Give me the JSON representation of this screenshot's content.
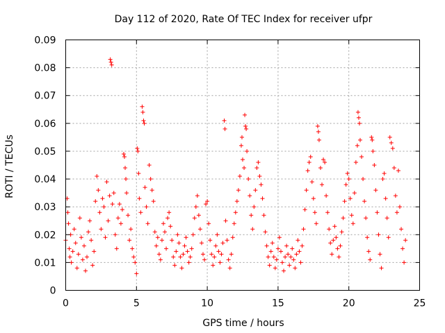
{
  "chart_data": {
    "type": "scatter",
    "title": "Day 112 of 2020, Rate Of TEC Index for receiver ufpr",
    "xlabel": "GPS time / hours",
    "ylabel": "ROTI / TECUs",
    "xlim": [
      0,
      25
    ],
    "ylim": [
      0,
      0.09
    ],
    "x_ticks": [
      "0",
      "5",
      "10",
      "15",
      "20",
      "25"
    ],
    "y_ticks": [
      "0",
      "0.01",
      "0.02",
      "0.03",
      "0.04",
      "0.05",
      "0.06",
      "0.07",
      "0.08",
      "0.09"
    ],
    "grid": true,
    "marker": "+",
    "color": "#ff0000",
    "series": [
      {
        "name": "ROTI",
        "points": [
          [
            0.0,
            0.018
          ],
          [
            0.1,
            0.033
          ],
          [
            0.15,
            0.028
          ],
          [
            0.2,
            0.024
          ],
          [
            0.25,
            0.015
          ],
          [
            0.3,
            0.012
          ],
          [
            0.35,
            0.02
          ],
          [
            0.4,
            0.01
          ],
          [
            0.5,
            0.014
          ],
          [
            0.6,
            0.022
          ],
          [
            0.7,
            0.017
          ],
          [
            0.8,
            0.008
          ],
          [
            0.9,
            0.013
          ],
          [
            1.0,
            0.026
          ],
          [
            1.1,
            0.019
          ],
          [
            1.2,
            0.011
          ],
          [
            1.3,
            0.016
          ],
          [
            1.4,
            0.007
          ],
          [
            1.5,
            0.012
          ],
          [
            1.6,
            0.021
          ],
          [
            1.7,
            0.025
          ],
          [
            1.8,
            0.018
          ],
          [
            1.9,
            0.009
          ],
          [
            2.0,
            0.014
          ],
          [
            2.1,
            0.032
          ],
          [
            2.2,
            0.041
          ],
          [
            2.3,
            0.036
          ],
          [
            2.4,
            0.028
          ],
          [
            2.5,
            0.022
          ],
          [
            2.6,
            0.033
          ],
          [
            2.7,
            0.03
          ],
          [
            2.8,
            0.019
          ],
          [
            2.9,
            0.039
          ],
          [
            3.0,
            0.025
          ],
          [
            3.1,
            0.034
          ],
          [
            3.15,
            0.083
          ],
          [
            3.2,
            0.082
          ],
          [
            3.25,
            0.081
          ],
          [
            3.3,
            0.031
          ],
          [
            3.4,
            0.035
          ],
          [
            3.5,
            0.02
          ],
          [
            3.6,
            0.015
          ],
          [
            3.7,
            0.026
          ],
          [
            3.8,
            0.031
          ],
          [
            3.9,
            0.024
          ],
          [
            4.0,
            0.029
          ],
          [
            4.1,
            0.049
          ],
          [
            4.15,
            0.048
          ],
          [
            4.2,
            0.044
          ],
          [
            4.25,
            0.04
          ],
          [
            4.3,
            0.035
          ],
          [
            4.4,
            0.027
          ],
          [
            4.5,
            0.018
          ],
          [
            4.6,
            0.022
          ],
          [
            4.7,
            0.015
          ],
          [
            4.8,
            0.012
          ],
          [
            4.9,
            0.01
          ],
          [
            5.0,
            0.006
          ],
          [
            5.05,
            0.051
          ],
          [
            5.1,
            0.05
          ],
          [
            5.15,
            0.042
          ],
          [
            5.2,
            0.033
          ],
          [
            5.3,
            0.028
          ],
          [
            5.4,
            0.066
          ],
          [
            5.45,
            0.064
          ],
          [
            5.5,
            0.061
          ],
          [
            5.55,
            0.06
          ],
          [
            5.6,
            0.037
          ],
          [
            5.7,
            0.03
          ],
          [
            5.8,
            0.024
          ],
          [
            5.9,
            0.045
          ],
          [
            6.0,
            0.04
          ],
          [
            6.1,
            0.036
          ],
          [
            6.2,
            0.032
          ],
          [
            6.3,
            0.021
          ],
          [
            6.4,
            0.016
          ],
          [
            6.5,
            0.019
          ],
          [
            6.6,
            0.013
          ],
          [
            6.7,
            0.011
          ],
          [
            6.8,
            0.018
          ],
          [
            6.9,
            0.024
          ],
          [
            7.0,
            0.021
          ],
          [
            7.1,
            0.015
          ],
          [
            7.2,
            0.026
          ],
          [
            7.3,
            0.028
          ],
          [
            7.4,
            0.023
          ],
          [
            7.5,
            0.018
          ],
          [
            7.6,
            0.012
          ],
          [
            7.7,
            0.009
          ],
          [
            7.8,
            0.014
          ],
          [
            7.9,
            0.02
          ],
          [
            8.0,
            0.017
          ],
          [
            8.1,
            0.012
          ],
          [
            8.2,
            0.008
          ],
          [
            8.3,
            0.013
          ],
          [
            8.4,
            0.016
          ],
          [
            8.5,
            0.019
          ],
          [
            8.6,
            0.014
          ],
          [
            8.7,
            0.01
          ],
          [
            8.8,
            0.012
          ],
          [
            8.9,
            0.015
          ],
          [
            9.0,
            0.02
          ],
          [
            9.1,
            0.026
          ],
          [
            9.2,
            0.03
          ],
          [
            9.3,
            0.034
          ],
          [
            9.4,
            0.027
          ],
          [
            9.5,
            0.022
          ],
          [
            9.6,
            0.017
          ],
          [
            9.7,
            0.013
          ],
          [
            9.8,
            0.011
          ],
          [
            9.9,
            0.031
          ],
          [
            10.0,
            0.032
          ],
          [
            10.1,
            0.024
          ],
          [
            10.2,
            0.018
          ],
          [
            10.3,
            0.013
          ],
          [
            10.4,
            0.009
          ],
          [
            10.5,
            0.012
          ],
          [
            10.6,
            0.016
          ],
          [
            10.7,
            0.02
          ],
          [
            10.8,
            0.014
          ],
          [
            10.9,
            0.01
          ],
          [
            11.0,
            0.013
          ],
          [
            11.1,
            0.017
          ],
          [
            11.2,
            0.061
          ],
          [
            11.25,
            0.058
          ],
          [
            11.3,
            0.025
          ],
          [
            11.4,
            0.018
          ],
          [
            11.5,
            0.011
          ],
          [
            11.6,
            0.008
          ],
          [
            11.7,
            0.013
          ],
          [
            11.8,
            0.019
          ],
          [
            11.9,
            0.024
          ],
          [
            12.0,
            0.028
          ],
          [
            12.1,
            0.032
          ],
          [
            12.2,
            0.036
          ],
          [
            12.3,
            0.041
          ],
          [
            12.4,
            0.052
          ],
          [
            12.45,
            0.055
          ],
          [
            12.5,
            0.047
          ],
          [
            12.6,
            0.044
          ],
          [
            12.65,
            0.063
          ],
          [
            12.7,
            0.059
          ],
          [
            12.75,
            0.058
          ],
          [
            12.8,
            0.05
          ],
          [
            12.9,
            0.04
          ],
          [
            13.0,
            0.034
          ],
          [
            13.1,
            0.027
          ],
          [
            13.2,
            0.022
          ],
          [
            13.3,
            0.03
          ],
          [
            13.4,
            0.036
          ],
          [
            13.5,
            0.044
          ],
          [
            13.6,
            0.046
          ],
          [
            13.7,
            0.041
          ],
          [
            13.8,
            0.038
          ],
          [
            13.9,
            0.033
          ],
          [
            14.0,
            0.027
          ],
          [
            14.1,
            0.021
          ],
          [
            14.2,
            0.016
          ],
          [
            14.3,
            0.012
          ],
          [
            14.4,
            0.009
          ],
          [
            14.5,
            0.014
          ],
          [
            14.6,
            0.017
          ],
          [
            14.7,
            0.012
          ],
          [
            14.8,
            0.008
          ],
          [
            14.9,
            0.011
          ],
          [
            15.0,
            0.015
          ],
          [
            15.1,
            0.019
          ],
          [
            15.2,
            0.014
          ],
          [
            15.3,
            0.01
          ],
          [
            15.4,
            0.007
          ],
          [
            15.5,
            0.012
          ],
          [
            15.6,
            0.016
          ],
          [
            15.7,
            0.013
          ],
          [
            15.8,
            0.009
          ],
          [
            15.9,
            0.012
          ],
          [
            16.0,
            0.015
          ],
          [
            16.1,
            0.011
          ],
          [
            16.2,
            0.008
          ],
          [
            16.3,
            0.013
          ],
          [
            16.4,
            0.018
          ],
          [
            16.5,
            0.014
          ],
          [
            16.6,
            0.01
          ],
          [
            16.7,
            0.016
          ],
          [
            16.8,
            0.022
          ],
          [
            16.9,
            0.029
          ],
          [
            17.0,
            0.036
          ],
          [
            17.1,
            0.043
          ],
          [
            17.2,
            0.046
          ],
          [
            17.3,
            0.048
          ],
          [
            17.4,
            0.039
          ],
          [
            17.5,
            0.033
          ],
          [
            17.6,
            0.028
          ],
          [
            17.7,
            0.024
          ],
          [
            17.8,
            0.059
          ],
          [
            17.85,
            0.057
          ],
          [
            17.9,
            0.054
          ],
          [
            18.0,
            0.044
          ],
          [
            18.1,
            0.038
          ],
          [
            18.2,
            0.047
          ],
          [
            18.3,
            0.046
          ],
          [
            18.4,
            0.034
          ],
          [
            18.5,
            0.028
          ],
          [
            18.6,
            0.022
          ],
          [
            18.7,
            0.017
          ],
          [
            18.8,
            0.013
          ],
          [
            18.9,
            0.018
          ],
          [
            19.0,
            0.023
          ],
          [
            19.1,
            0.019
          ],
          [
            19.2,
            0.015
          ],
          [
            19.3,
            0.012
          ],
          [
            19.4,
            0.016
          ],
          [
            19.5,
            0.021
          ],
          [
            19.6,
            0.026
          ],
          [
            19.7,
            0.032
          ],
          [
            19.8,
            0.038
          ],
          [
            19.9,
            0.042
          ],
          [
            20.0,
            0.04
          ],
          [
            20.1,
            0.033
          ],
          [
            20.2,
            0.027
          ],
          [
            20.3,
            0.024
          ],
          [
            20.4,
            0.035
          ],
          [
            20.5,
            0.046
          ],
          [
            20.6,
            0.052
          ],
          [
            20.65,
            0.064
          ],
          [
            20.7,
            0.062
          ],
          [
            20.75,
            0.06
          ],
          [
            20.8,
            0.054
          ],
          [
            20.9,
            0.048
          ],
          [
            21.0,
            0.04
          ],
          [
            21.1,
            0.032
          ],
          [
            21.2,
            0.026
          ],
          [
            21.3,
            0.019
          ],
          [
            21.4,
            0.014
          ],
          [
            21.5,
            0.011
          ],
          [
            21.6,
            0.055
          ],
          [
            21.65,
            0.054
          ],
          [
            21.7,
            0.05
          ],
          [
            21.8,
            0.045
          ],
          [
            21.9,
            0.036
          ],
          [
            22.0,
            0.028
          ],
          [
            22.1,
            0.02
          ],
          [
            22.2,
            0.013
          ],
          [
            22.3,
            0.008
          ],
          [
            22.4,
            0.04
          ],
          [
            22.5,
            0.042
          ],
          [
            22.6,
            0.033
          ],
          [
            22.7,
            0.026
          ],
          [
            22.8,
            0.019
          ],
          [
            22.9,
            0.055
          ],
          [
            23.0,
            0.053
          ],
          [
            23.1,
            0.051
          ],
          [
            23.2,
            0.044
          ],
          [
            23.3,
            0.034
          ],
          [
            23.4,
            0.028
          ],
          [
            23.5,
            0.043
          ],
          [
            23.6,
            0.03
          ],
          [
            23.7,
            0.022
          ],
          [
            23.8,
            0.015
          ],
          [
            23.9,
            0.01
          ],
          [
            24.0,
            0.018
          ]
        ]
      }
    ]
  }
}
